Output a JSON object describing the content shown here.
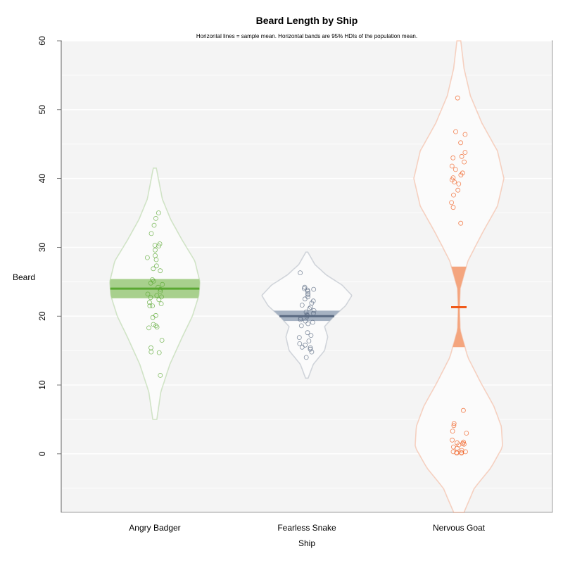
{
  "chart_data": {
    "type": "pirate",
    "title": "Beard Length by Ship",
    "subtitle": "Horizontal lines = sample mean. Horizontal bands are 95% HDIs of the population mean.",
    "xlabel": "Ship",
    "ylabel": "Beard",
    "ylim": [
      -8.5,
      60
    ],
    "yticks": [
      0,
      10,
      20,
      30,
      40,
      50,
      60
    ],
    "grid": true,
    "categories": [
      "Angry Badger",
      "Fearless Snake",
      "Nervous Goat"
    ],
    "groups": [
      {
        "name": "Angry Badger",
        "color": "#5aa832",
        "band_color": "#a8d08d",
        "mean": 24.0,
        "hdi": [
          22.6,
          25.4
        ],
        "bean_range": [
          5,
          41.5
        ],
        "density": [
          [
            5,
            0.004
          ],
          [
            9,
            0.012
          ],
          [
            13,
            0.03
          ],
          [
            17,
            0.055
          ],
          [
            20,
            0.075
          ],
          [
            23,
            0.088
          ],
          [
            25,
            0.09
          ],
          [
            28,
            0.08
          ],
          [
            31,
            0.055
          ],
          [
            34,
            0.032
          ],
          [
            37,
            0.015
          ],
          [
            41.5,
            0.003
          ]
        ],
        "points": [
          35.0,
          34.2,
          33.2,
          32.0,
          30.5,
          30.2,
          30.3,
          29.6,
          28.8,
          28.5,
          28.2,
          27.3,
          26.9,
          26.6,
          25.3,
          25.1,
          24.8,
          24.6,
          24.2,
          23.9,
          23.6,
          23.2,
          23.0,
          22.8,
          22.7,
          22.4,
          22.0,
          21.8,
          21.5,
          21.5,
          20.1,
          19.8,
          18.8,
          18.6,
          18.3,
          18.4,
          16.5,
          15.4,
          14.8,
          14.7,
          11.4
        ]
      },
      {
        "name": "Fearless Snake",
        "color": "#5a6a82",
        "band_color": "#a6b2c2",
        "mean": 20.0,
        "hdi": [
          19.3,
          20.8
        ],
        "bean_range": [
          11,
          29.3
        ],
        "density": [
          [
            11,
            0.004
          ],
          [
            13,
            0.02
          ],
          [
            15,
            0.055
          ],
          [
            17,
            0.065
          ],
          [
            18.5,
            0.055
          ],
          [
            20,
            0.085
          ],
          [
            21.5,
            0.12
          ],
          [
            23,
            0.14
          ],
          [
            24.5,
            0.11
          ],
          [
            26,
            0.06
          ],
          [
            27.5,
            0.025
          ],
          [
            29.3,
            0.003
          ]
        ],
        "points": [
          26.3,
          24.2,
          24.0,
          23.9,
          23.8,
          23.6,
          23.3,
          23.1,
          22.8,
          22.5,
          22.2,
          21.9,
          21.6,
          21.3,
          21.1,
          20.8,
          20.6,
          20.4,
          20.2,
          20.1,
          19.9,
          19.7,
          19.5,
          19.3,
          19.1,
          18.9,
          18.6,
          17.6,
          17.2,
          16.9,
          16.4,
          16.0,
          15.8,
          15.5,
          15.4,
          15.2,
          14.8,
          14.0
        ]
      },
      {
        "name": "Nervous Goat",
        "color": "#f05a1a",
        "band_color": "#f4a57e",
        "mean": 21.3,
        "hdi": [
          15.5,
          27.2
        ],
        "bean_range": [
          -8.5,
          60
        ],
        "density": [
          [
            -8.5,
            0.004
          ],
          [
            -5,
            0.012
          ],
          [
            -2,
            0.025
          ],
          [
            1,
            0.034
          ],
          [
            4,
            0.033
          ],
          [
            7,
            0.027
          ],
          [
            10,
            0.018
          ],
          [
            14,
            0.007
          ],
          [
            18,
            0.001
          ],
          [
            21,
            0.0005
          ],
          [
            24,
            0.001
          ],
          [
            28,
            0.007
          ],
          [
            32,
            0.018
          ],
          [
            36,
            0.03
          ],
          [
            40,
            0.035
          ],
          [
            44,
            0.03
          ],
          [
            48,
            0.018
          ],
          [
            52,
            0.009
          ],
          [
            56,
            0.004
          ],
          [
            60,
            0.0015
          ]
        ],
        "points": [
          51.7,
          46.8,
          46.4,
          45.2,
          43.8,
          43.2,
          43.0,
          42.4,
          41.8,
          41.3,
          40.8,
          40.5,
          40.1,
          39.8,
          39.5,
          39.2,
          38.3,
          37.6,
          36.5,
          35.8,
          33.5,
          6.3,
          4.4,
          4.1,
          3.3,
          3.0,
          2.0,
          1.7,
          1.6,
          1.5,
          1.4,
          1.3,
          1.0,
          0.8,
          0.5,
          0.3,
          0.3,
          0.2,
          0.2,
          0.1,
          0.1
        ]
      }
    ]
  }
}
